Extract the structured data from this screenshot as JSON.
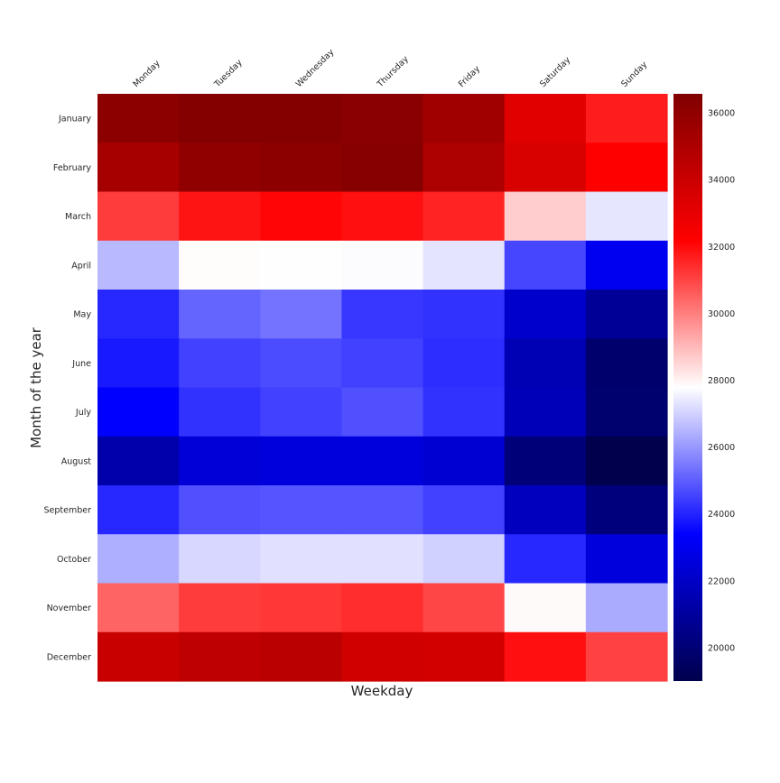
{
  "chart_data": {
    "type": "heatmap",
    "title": "",
    "xlabel": "Weekday",
    "ylabel": "Month of the year",
    "x_categories": [
      "Monday",
      "Tuesday",
      "Wednesday",
      "Thursday",
      "Friday",
      "Saturday",
      "Sunday"
    ],
    "y_categories": [
      "January",
      "February",
      "March",
      "April",
      "May",
      "June",
      "July",
      "August",
      "September",
      "October",
      "November",
      "December"
    ],
    "values": [
      [
        36100,
        36400,
        36400,
        36200,
        35400,
        33200,
        31700
      ],
      [
        35200,
        36000,
        36100,
        36300,
        35000,
        33500,
        32180
      ],
      [
        31140,
        31830,
        32090,
        31920,
        31570,
        28650,
        27350
      ],
      [
        26580,
        27830,
        27810,
        27740,
        27320,
        24600,
        23020
      ],
      [
        24070,
        25120,
        25380,
        24340,
        24250,
        22160,
        20800
      ],
      [
        23820,
        24510,
        24690,
        24510,
        24160,
        21540,
        19810
      ],
      [
        23370,
        24250,
        24510,
        24770,
        24250,
        21670,
        19820
      ],
      [
        21290,
        22400,
        22530,
        22530,
        22280,
        20060,
        19000
      ],
      [
        24070,
        24770,
        24860,
        24860,
        24510,
        21790,
        20190
      ],
      [
        26410,
        27090,
        27270,
        27270,
        27000,
        24070,
        22530
      ],
      [
        30450,
        31140,
        31230,
        31400,
        30970,
        27870,
        26320
      ],
      [
        34040,
        34390,
        34560,
        33870,
        33700,
        31920,
        31060
      ]
    ],
    "colormap": "seismic",
    "colorbar": {
      "range": [
        19000,
        36570
      ],
      "ticks": [
        20000,
        22000,
        24000,
        26000,
        28000,
        30000,
        32000,
        34000,
        36000
      ],
      "tick_labels": [
        "20000",
        "22000",
        "24000",
        "26000",
        "28000",
        "30000",
        "32000",
        "34000",
        "36000"
      ]
    },
    "grid": false
  }
}
